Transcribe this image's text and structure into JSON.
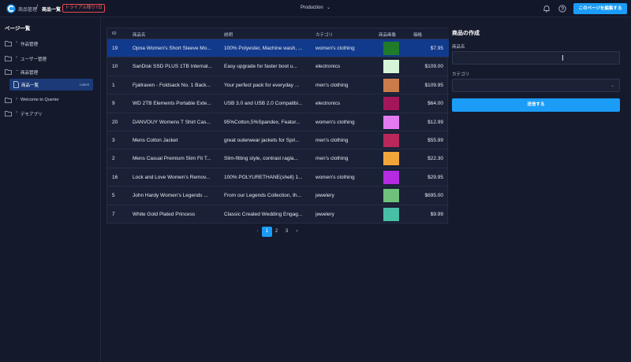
{
  "header": {
    "breadcrumb_app": "商品管理",
    "breadcrumb_sep": "/",
    "breadcrumb_page": "商品一覧",
    "trial_badge": "トライアル残り7日",
    "environment": "Production",
    "edit_button": "このページを編集する"
  },
  "sidebar": {
    "title": "ページ一覧",
    "items": [
      {
        "label": "作品管理",
        "expanded": false
      },
      {
        "label": "ユーザー管理",
        "expanded": false
      },
      {
        "label": "商品管理",
        "expanded": true
      },
      {
        "label": "Welcome to Querier",
        "expanded": false
      },
      {
        "label": "デモアプリ",
        "expanded": false
      }
    ],
    "sub_item": {
      "label": "商品一覧",
      "tag": "Latest"
    }
  },
  "table": {
    "columns": [
      "ID",
      "商品名",
      "説明",
      "カテゴリ",
      "商品画像",
      "価格"
    ],
    "rows": [
      {
        "id": "19",
        "name": "Opna Women's Short Sleeve Mo...",
        "desc": "100% Polyester, Machine wash, ...",
        "category": "women's clothing",
        "image_color": "#1f7a2a",
        "price": "$7.95"
      },
      {
        "id": "10",
        "name": "SanDisk SSD PLUS 1TB Internal...",
        "desc": "Easy upgrade for faster boot u...",
        "category": "electronics",
        "image_color": "#d6f5d8",
        "price": "$109.00"
      },
      {
        "id": "1",
        "name": "Fjallraven - Foldsack No. 1 Back...",
        "desc": "Your perfect pack for everyday ...",
        "category": "men's clothing",
        "image_color": "#c97c4a",
        "price": "$109.95"
      },
      {
        "id": "9",
        "name": "WD 2TB Elements Portable Exte...",
        "desc": "USB 3.0 and USB 2.0 Compatibi...",
        "category": "electronics",
        "image_color": "#a3175a",
        "price": "$64.00"
      },
      {
        "id": "20",
        "name": "DANVOUY Womens T Shirt Cas...",
        "desc": "95%Cotton,5%Spandex, Featur...",
        "category": "women's clothing",
        "image_color": "#e37bf0",
        "price": "$12.99"
      },
      {
        "id": "3",
        "name": "Mens Cotton Jacket",
        "desc": "great outerwear jackets for Spri...",
        "category": "men's clothing",
        "image_color": "#b8285a",
        "price": "$55.99"
      },
      {
        "id": "2",
        "name": "Mens Casual Premium Slim Fit T...",
        "desc": "Slim-fitting style, contrast ragla...",
        "category": "men's clothing",
        "image_color": "#f2a63a",
        "price": "$22.30"
      },
      {
        "id": "16",
        "name": "Lock and Love Women's Remov...",
        "desc": "100% POLYURETHANE(shell) 1...",
        "category": "women's clothing",
        "image_color": "#b52be0",
        "price": "$29.95"
      },
      {
        "id": "5",
        "name": "John Hardy Women's Legends ...",
        "desc": "From our Legends Collection, th...",
        "category": "jewelery",
        "image_color": "#6fc07a",
        "price": "$695.00"
      },
      {
        "id": "7",
        "name": "White Gold Plated Princess",
        "desc": "Classic Created Wedding Engag...",
        "category": "jewelery",
        "image_color": "#47bfa7",
        "price": "$9.99"
      }
    ],
    "selected_row": 0
  },
  "pagination": {
    "pages": [
      "1",
      "2",
      "3"
    ],
    "current": "1",
    "prev": "‹",
    "next": "›"
  },
  "form": {
    "title": "商品の作成",
    "name_label": "商品名",
    "name_value": "",
    "category_label": "カテゴリ",
    "category_value": "",
    "submit_label": "送信する"
  },
  "colors": {
    "accent": "#1b9cf7",
    "selected_row": "#123a8c",
    "trial": "#e5484d"
  }
}
